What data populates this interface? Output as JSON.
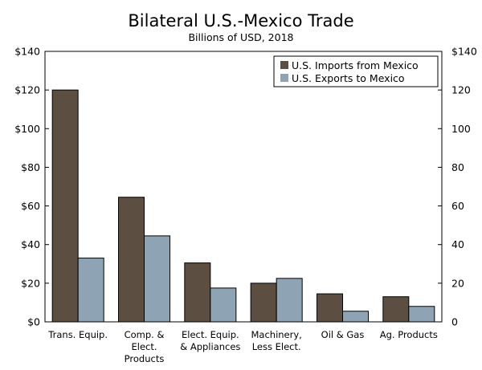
{
  "chart_data": {
    "type": "bar",
    "title": "Bilateral U.S.-Mexico Trade",
    "subtitle": "Billions of USD, 2018",
    "xlabel": "",
    "ylabel": "",
    "ylim": [
      0,
      140
    ],
    "yticks": [
      {
        "value": 0,
        "label": "$0"
      },
      {
        "value": 20,
        "label": "$20"
      },
      {
        "value": 40,
        "label": "$40"
      },
      {
        "value": 60,
        "label": "$60"
      },
      {
        "value": 80,
        "label": "$80"
      },
      {
        "value": 100,
        "label": "$100"
      },
      {
        "value": 120,
        "label": "$120"
      },
      {
        "value": 140,
        "label": "$140"
      }
    ],
    "yticks_right": [
      {
        "value": 0,
        "label": "0"
      },
      {
        "value": 20,
        "label": "20"
      },
      {
        "value": 40,
        "label": "40"
      },
      {
        "value": 60,
        "label": "60"
      },
      {
        "value": 80,
        "label": "80"
      },
      {
        "value": 100,
        "label": "100"
      },
      {
        "value": 120,
        "label": "120"
      },
      {
        "value": 140,
        "label": "$140"
      }
    ],
    "categories": [
      [
        "Trans. Equip."
      ],
      [
        "Comp. &",
        "Elect.",
        "Products"
      ],
      [
        "Elect. Equip.",
        "& Appliances"
      ],
      [
        "Machinery,",
        "Less Elect."
      ],
      [
        "Oil & Gas"
      ],
      [
        "Ag. Products"
      ]
    ],
    "series": [
      {
        "name": "U.S. Imports from Mexico",
        "color": "#5c4f42",
        "values": [
          120,
          64.5,
          30.5,
          20,
          14.5,
          13
        ]
      },
      {
        "name": "U.S. Exports to Mexico",
        "color": "#8ea4b4",
        "values": [
          33,
          44.5,
          17.5,
          22.5,
          5.5,
          8
        ]
      }
    ],
    "grid": false,
    "legend_position": "top-right"
  }
}
